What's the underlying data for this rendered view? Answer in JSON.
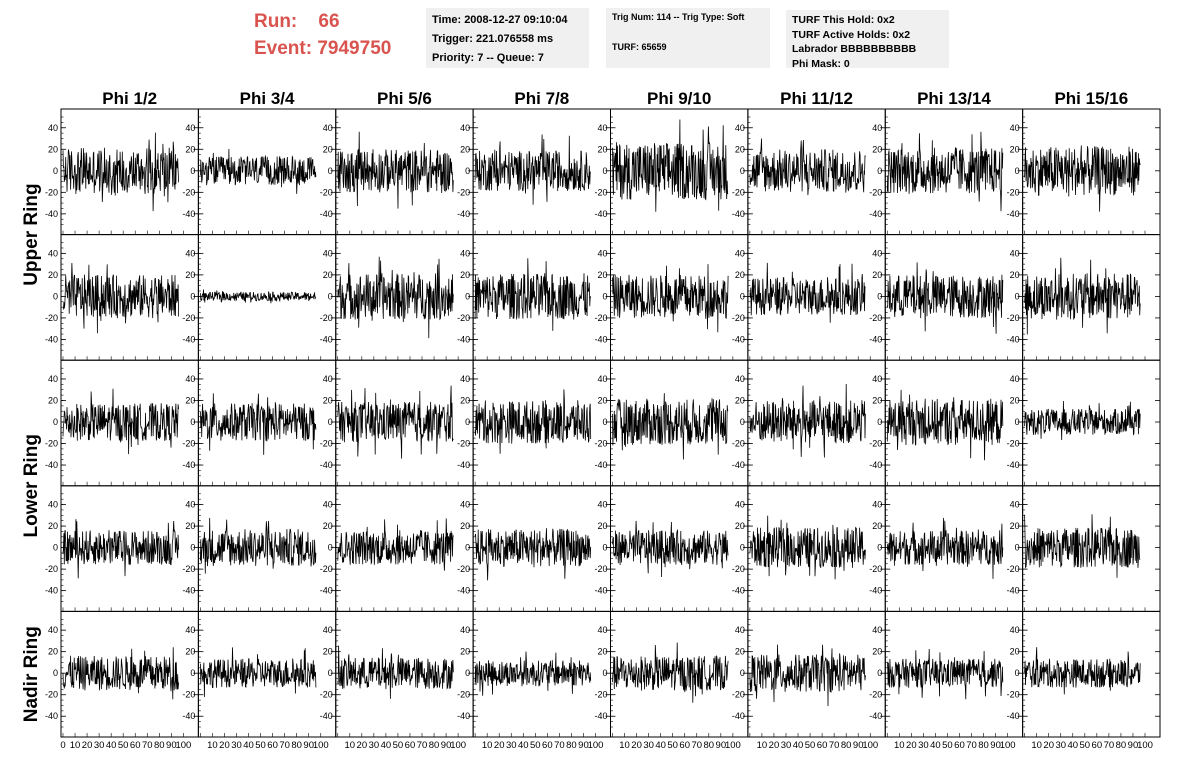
{
  "header": {
    "run_label": "Run:",
    "run_value": "66",
    "event_label": "Event:",
    "event_value": "7949750",
    "time": "Time: 2008-12-27 09:10:04",
    "trigger": "Trigger: 221.076558 ms",
    "priority": "Priority: 7 -- Queue: 7",
    "trig_num": "Trig Num: 114 -- Trig Type: Soft",
    "turf": "TURF: 65659",
    "turf_this_hold": "TURF This Hold: 0x2",
    "turf_active_holds": "TURF Active Holds: 0x2",
    "labrador": "Labrador BBBBBBBBBB",
    "phi_mask": "Phi Mask: 0"
  },
  "colors": {
    "header_red": "#d9534f",
    "info_bg": "#f0f0f0",
    "trace": "#000000"
  },
  "chart_data": {
    "type": "line",
    "columns": [
      "Phi 1/2",
      "Phi 3/4",
      "Phi 5/6",
      "Phi 7/8",
      "Phi 9/10",
      "Phi 11/12",
      "Phi 13/14",
      "Phi 15/16"
    ],
    "rows": [
      "Upper Ring",
      "Upper Ring",
      "Lower Ring",
      "Lower Ring",
      "Nadir Ring"
    ],
    "ring_labels": [
      "Upper Ring",
      "Lower Ring",
      "Nadir Ring"
    ],
    "xlim": [
      0,
      100
    ],
    "ylim": [
      -50,
      50
    ],
    "x_ticks": [
      "0",
      "10",
      "20",
      "30",
      "40",
      "50",
      "60",
      "70",
      "80",
      "90",
      "100"
    ],
    "y_ticks": [
      "40",
      "20",
      "0",
      "-20",
      "-40"
    ],
    "y_tick_values": [
      40,
      20,
      0,
      -20,
      -40
    ],
    "samples_per_trace": 260,
    "trace_x_extent": [
      0,
      96
    ],
    "amplitude": [
      [
        16,
        10,
        15,
        14,
        20,
        15,
        16,
        17
      ],
      [
        15,
        3,
        16,
        16,
        15,
        13,
        15,
        16
      ],
      [
        13,
        13,
        14,
        15,
        16,
        15,
        16,
        9
      ],
      [
        12,
        13,
        12,
        13,
        12,
        14,
        12,
        14
      ],
      [
        12,
        10,
        11,
        9,
        12,
        13,
        10,
        10
      ]
    ]
  }
}
